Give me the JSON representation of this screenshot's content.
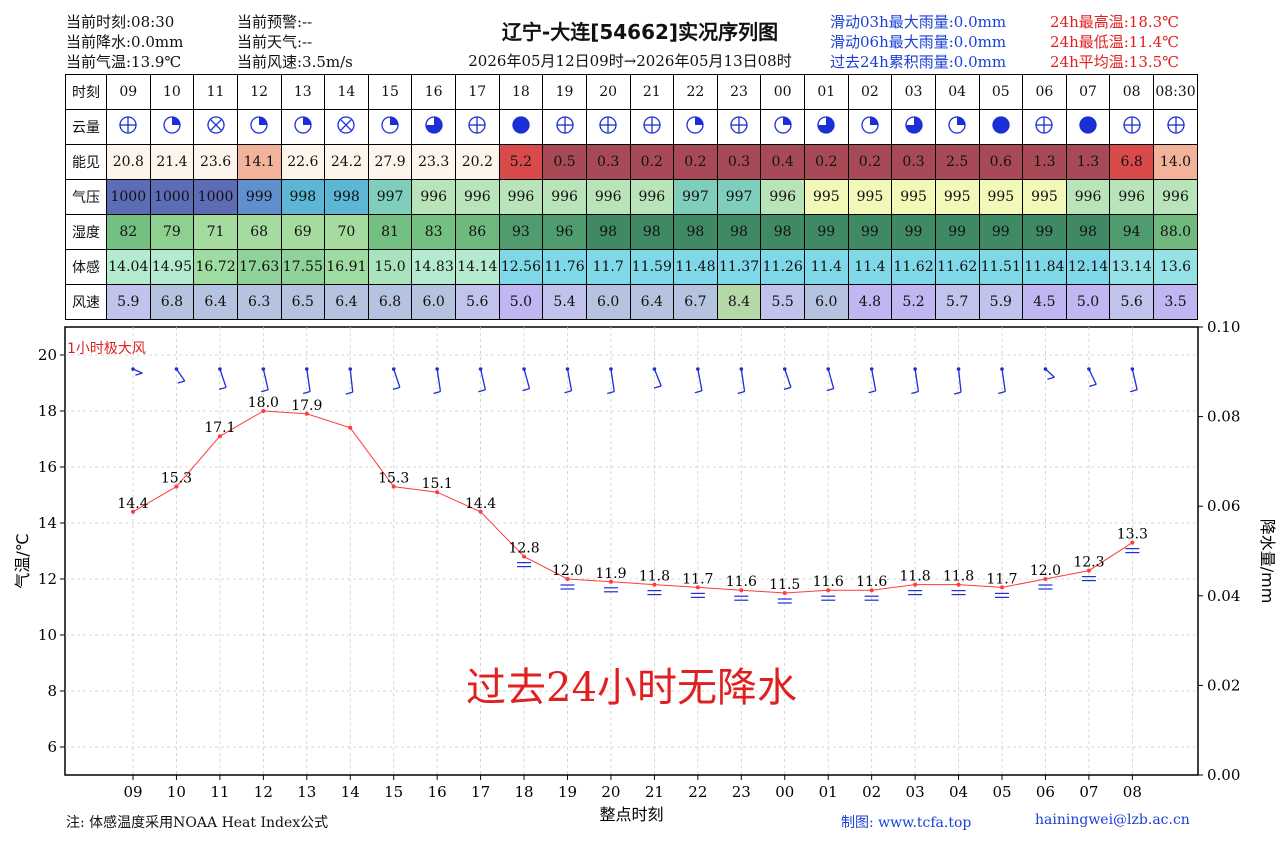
{
  "header": {
    "left": [
      "当前时刻:08:30",
      "当前降水:0.0mm",
      "当前气温:13.9℃"
    ],
    "mid": [
      "当前预警:--",
      "当前天气:--",
      "当前风速:3.5m/s"
    ],
    "right_blue": [
      "滑动03h最大雨量:0.0mm",
      "滑动06h最大雨量:0.0mm",
      "过去24h累积雨量:0.0mm"
    ],
    "right_red": [
      "24h最高温:18.3℃",
      "24h最低温:11.4℃",
      "24h平均温:13.5℃"
    ],
    "title": "辽宁-大连[54662]实况序列图",
    "subtitle": "2026年05月12日09时→2026年05月13日08时"
  },
  "table": {
    "row_labels": [
      "时刻",
      "云量",
      "能见",
      "气压",
      "湿度",
      "体感",
      "风速"
    ],
    "hours": [
      "09",
      "10",
      "11",
      "12",
      "13",
      "14",
      "15",
      "16",
      "17",
      "18",
      "19",
      "20",
      "21",
      "22",
      "23",
      "00",
      "01",
      "02",
      "03",
      "04",
      "05",
      "06",
      "07",
      "08",
      "08:30"
    ],
    "cloud": [
      "half",
      "quarter",
      "x",
      "quarter",
      "quarter",
      "x",
      "quarter",
      "three",
      "half",
      "full",
      "half",
      "half",
      "half",
      "quarter",
      "half",
      "quarter",
      "three",
      "quarter",
      "three",
      "quarter",
      "full",
      "half",
      "full",
      "half",
      "half"
    ],
    "visibility": [
      "20.8",
      "21.4",
      "23.6",
      "14.1",
      "22.6",
      "24.2",
      "27.9",
      "23.3",
      "20.2",
      "5.2",
      "0.5",
      "0.3",
      "0.2",
      "0.2",
      "0.3",
      "0.4",
      "0.2",
      "0.2",
      "0.3",
      "2.5",
      "0.6",
      "1.3",
      "1.3",
      "6.8",
      "14.0"
    ],
    "pressure": [
      "1000",
      "1000",
      "1000",
      "999",
      "998",
      "998",
      "997",
      "996",
      "996",
      "996",
      "996",
      "996",
      "996",
      "997",
      "997",
      "996",
      "995",
      "995",
      "995",
      "995",
      "995",
      "995",
      "996",
      "996",
      "996"
    ],
    "humidity": [
      "82",
      "79",
      "71",
      "68",
      "69",
      "70",
      "81",
      "83",
      "86",
      "93",
      "96",
      "98",
      "98",
      "98",
      "98",
      "98",
      "99",
      "99",
      "99",
      "99",
      "99",
      "99",
      "98",
      "94",
      "88.0"
    ],
    "feels": [
      "14.04",
      "14.95",
      "16.72",
      "17.63",
      "17.55",
      "16.91",
      "15.0",
      "14.83",
      "14.14",
      "12.56",
      "11.76",
      "11.7",
      "11.59",
      "11.48",
      "11.37",
      "11.26",
      "11.4",
      "11.4",
      "11.62",
      "11.62",
      "11.51",
      "11.84",
      "12.14",
      "13.14",
      "13.6"
    ],
    "wind": [
      "5.9",
      "6.8",
      "6.4",
      "6.3",
      "6.5",
      "6.4",
      "6.8",
      "6.0",
      "5.6",
      "5.0",
      "5.4",
      "6.0",
      "6.4",
      "6.7",
      "8.4",
      "5.5",
      "6.0",
      "4.8",
      "5.2",
      "5.7",
      "5.9",
      "4.5",
      "5.0",
      "5.6",
      "3.5"
    ]
  },
  "colors": {
    "vis_red_dark": "#a84a55",
    "vis_red": "#d94b4b",
    "vis_pink": "#f7c4b0",
    "vis_cream": "#fdf5ec",
    "vis_light": "#f3b29a",
    "line": "#ff3b3b",
    "barb": "#1a2fd6",
    "annotation": "#e02020"
  },
  "chart_data": {
    "type": "line",
    "title": "",
    "xlabel": "整点时刻",
    "ylabel": "气温/℃",
    "ylabel_right": "降水量/mm",
    "x": [
      "09",
      "10",
      "11",
      "12",
      "13",
      "14",
      "15",
      "16",
      "17",
      "18",
      "19",
      "20",
      "21",
      "22",
      "23",
      "00",
      "01",
      "02",
      "03",
      "04",
      "05",
      "06",
      "07",
      "08"
    ],
    "series": [
      {
        "values": [
          14.4,
          15.3,
          17.1,
          18.0,
          17.9,
          17.4,
          15.3,
          15.1,
          14.4,
          12.8,
          12.0,
          11.9,
          11.8,
          11.7,
          11.6,
          11.5,
          11.6,
          11.6,
          11.8,
          11.8,
          11.7,
          12.0,
          12.3,
          13.3
        ]
      }
    ],
    "point_labels": [
      "14.4",
      "15.3",
      "17.1",
      "18.0",
      "17.9",
      "",
      "15.3",
      "15.1",
      "14.4",
      "12.8",
      "12.0",
      "11.9",
      "11.8",
      "11.7",
      "11.6",
      "11.5",
      "11.6",
      "11.6",
      "11.8",
      "11.8",
      "11.7",
      "12.0",
      "12.3",
      "13.3"
    ],
    "ylim": [
      5,
      20.5
    ],
    "yticks": [
      6,
      8,
      10,
      12,
      14,
      16,
      18,
      20
    ],
    "ylim_right": [
      0,
      0.1
    ],
    "yticks_right": [
      "0.00",
      "0.02",
      "0.04",
      "0.06",
      "0.08",
      "0.10"
    ],
    "grid": true,
    "annotation_wind": "1小时极大风",
    "annotation_rain": "过去24小时无降水"
  },
  "footer": {
    "note": "注: 体感温度采用NOAA Heat Index公式",
    "credit": "制图: www.tcfa.top",
    "email": "hainingwei@lzb.ac.cn"
  }
}
